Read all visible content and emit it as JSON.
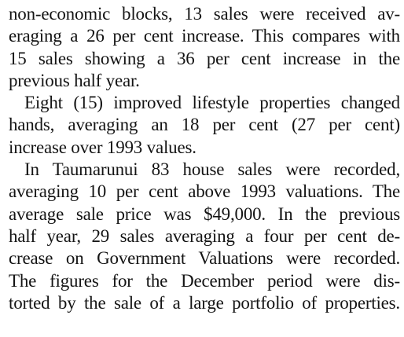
{
  "paragraphs": [
    {
      "indent": false,
      "lines": [
        "non-economic blocks, 13 sales were received av-",
        "eraging a 26 per cent increase. This compares with",
        "15 sales showing a 36 per cent increase in the",
        "previous half year."
      ]
    },
    {
      "indent": true,
      "lines": [
        "Eight (15) improved lifestyle properties changed",
        "hands, averaging an 18 per cent (27 per cent)",
        "increase over 1993 values."
      ]
    },
    {
      "indent": true,
      "lines": [
        "In Taumarunui 83 house sales were recorded,",
        "averaging 10 per cent above 1993 valuations. The",
        "average sale price was $49,000. In the previous",
        "half year, 29 sales averaging a four per cent de-",
        "crease on Government Valuations were recorded.",
        "The figures for the December period were dis-",
        "torted by the sale of a large portfolio of properties."
      ]
    }
  ]
}
